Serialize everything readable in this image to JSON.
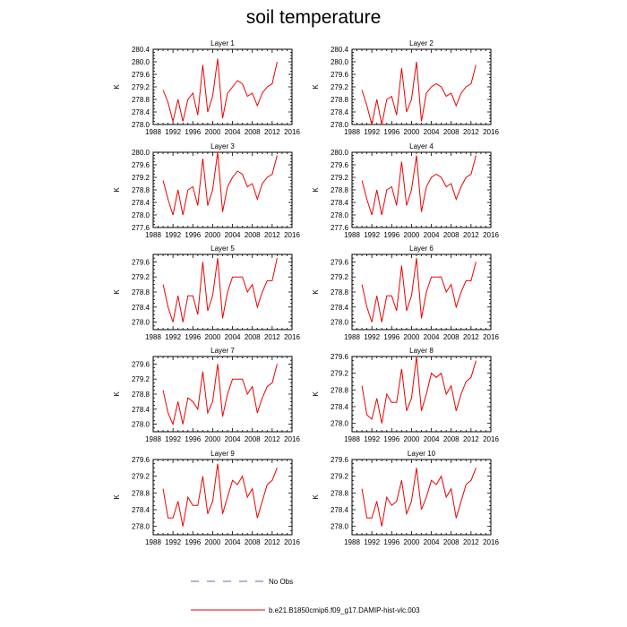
{
  "title": "soil temperature",
  "colors": {
    "series": "#ee0000",
    "noobs": "#6a6aa8",
    "axis": "#000000"
  },
  "legend": {
    "placement": "bottom",
    "items": [
      {
        "label": "No Obs",
        "style": "dashed",
        "color": "#6a6aa8"
      },
      {
        "label": "b.e21.B1850cmip6.f09_g17.DAMIP-hist-vlc.003",
        "style": "solid",
        "color": "#ee0000"
      }
    ]
  },
  "chart_data": [
    {
      "type": "line",
      "title": "Layer 1",
      "ylabel": "K",
      "xlim": [
        1988,
        2016
      ],
      "ylim": [
        278.0,
        280.4
      ],
      "xticks": [
        "1988",
        "1992",
        "1996",
        "2000",
        "2004",
        "2008",
        "2012",
        "2016"
      ],
      "yticks": [
        "278.0",
        "278.4",
        "278.8",
        "279.2",
        "279.6",
        "280.0",
        "280.4"
      ],
      "series": [
        {
          "x": [
            1990,
            1991,
            1992,
            1993,
            1994,
            1995,
            1996,
            1997,
            1998,
            1999,
            2000,
            2001,
            2002,
            2003,
            2004,
            2005,
            2006,
            2007,
            2008,
            2009,
            2010,
            2011,
            2012,
            2013
          ],
          "y": [
            279.1,
            278.7,
            278.1,
            278.8,
            278.1,
            278.8,
            279.0,
            278.3,
            279.9,
            278.4,
            278.9,
            280.1,
            278.2,
            279.0,
            279.2,
            279.4,
            279.3,
            278.9,
            279.0,
            278.6,
            279.0,
            279.2,
            279.3,
            280.0
          ]
        }
      ]
    },
    {
      "type": "line",
      "title": "Layer 2",
      "ylabel": "K",
      "xlim": [
        1988,
        2016
      ],
      "ylim": [
        278.0,
        280.4
      ],
      "xticks": [
        "1988",
        "1992",
        "1996",
        "2000",
        "2004",
        "2008",
        "2012",
        "2016"
      ],
      "yticks": [
        "278.0",
        "278.4",
        "278.8",
        "279.2",
        "279.6",
        "280.0",
        "280.4"
      ],
      "series": [
        {
          "x": [
            1990,
            1991,
            1992,
            1993,
            1994,
            1995,
            1996,
            1997,
            1998,
            1999,
            2000,
            2001,
            2002,
            2003,
            2004,
            2005,
            2006,
            2007,
            2008,
            2009,
            2010,
            2011,
            2012,
            2013
          ],
          "y": [
            279.1,
            278.6,
            278.0,
            278.8,
            278.0,
            278.8,
            278.9,
            278.3,
            279.8,
            278.4,
            278.8,
            280.0,
            278.1,
            279.0,
            279.2,
            279.3,
            279.2,
            278.9,
            279.0,
            278.6,
            279.0,
            279.2,
            279.3,
            279.9
          ]
        }
      ]
    },
    {
      "type": "line",
      "title": "Layer 3",
      "ylabel": "K",
      "xlim": [
        1988,
        2016
      ],
      "ylim": [
        277.6,
        280.0
      ],
      "xticks": [
        "1988",
        "1992",
        "1996",
        "2000",
        "2004",
        "2008",
        "2012",
        "2016"
      ],
      "yticks": [
        "277.6",
        "278.0",
        "278.4",
        "278.8",
        "279.2",
        "279.6",
        "280.0"
      ],
      "series": [
        {
          "x": [
            1990,
            1991,
            1992,
            1993,
            1994,
            1995,
            1996,
            1997,
            1998,
            1999,
            2000,
            2001,
            2002,
            2003,
            2004,
            2005,
            2006,
            2007,
            2008,
            2009,
            2010,
            2011,
            2012,
            2013
          ],
          "y": [
            279.1,
            278.5,
            278.0,
            278.8,
            278.0,
            278.8,
            278.9,
            278.3,
            279.8,
            278.3,
            278.8,
            280.0,
            278.1,
            278.9,
            279.2,
            279.4,
            279.3,
            278.9,
            279.0,
            278.5,
            279.0,
            279.2,
            279.3,
            279.9
          ]
        }
      ]
    },
    {
      "type": "line",
      "title": "Layer 4",
      "ylabel": "K",
      "xlim": [
        1988,
        2016
      ],
      "ylim": [
        277.6,
        280.0
      ],
      "xticks": [
        "1988",
        "1992",
        "1996",
        "2000",
        "2004",
        "2008",
        "2012",
        "2016"
      ],
      "yticks": [
        "277.6",
        "278.0",
        "278.4",
        "278.8",
        "279.2",
        "279.6",
        "280.0"
      ],
      "series": [
        {
          "x": [
            1990,
            1991,
            1992,
            1993,
            1994,
            1995,
            1996,
            1997,
            1998,
            1999,
            2000,
            2001,
            2002,
            2003,
            2004,
            2005,
            2006,
            2007,
            2008,
            2009,
            2010,
            2011,
            2012,
            2013
          ],
          "y": [
            279.1,
            278.5,
            278.0,
            278.8,
            278.0,
            278.8,
            278.9,
            278.3,
            279.7,
            278.3,
            278.8,
            279.9,
            278.1,
            278.9,
            279.2,
            279.3,
            279.2,
            278.9,
            279.0,
            278.5,
            278.9,
            279.2,
            279.3,
            279.9
          ]
        }
      ]
    },
    {
      "type": "line",
      "title": "Layer 5",
      "ylabel": "K",
      "xlim": [
        1988,
        2016
      ],
      "ylim": [
        277.8,
        279.8
      ],
      "xticks": [
        "1988",
        "1992",
        "1996",
        "2000",
        "2004",
        "2008",
        "2012",
        "2016"
      ],
      "yticks": [
        "278.0",
        "278.4",
        "278.8",
        "279.2",
        "279.6"
      ],
      "series": [
        {
          "x": [
            1990,
            1991,
            1992,
            1993,
            1994,
            1995,
            1996,
            1997,
            1998,
            1999,
            2000,
            2001,
            2002,
            2003,
            2004,
            2005,
            2006,
            2007,
            2008,
            2009,
            2010,
            2011,
            2012,
            2013
          ],
          "y": [
            279.0,
            278.4,
            278.0,
            278.7,
            278.0,
            278.7,
            278.7,
            278.2,
            279.6,
            278.3,
            278.7,
            279.7,
            278.1,
            278.8,
            279.2,
            279.2,
            279.2,
            278.8,
            279.0,
            278.4,
            278.8,
            279.1,
            279.1,
            279.7
          ]
        }
      ]
    },
    {
      "type": "line",
      "title": "Layer 6",
      "ylabel": "K",
      "xlim": [
        1988,
        2016
      ],
      "ylim": [
        277.8,
        279.8
      ],
      "xticks": [
        "1988",
        "1992",
        "1996",
        "2000",
        "2004",
        "2008",
        "2012",
        "2016"
      ],
      "yticks": [
        "278.0",
        "278.4",
        "278.8",
        "279.2",
        "279.6"
      ],
      "series": [
        {
          "x": [
            1990,
            1991,
            1992,
            1993,
            1994,
            1995,
            1996,
            1997,
            1998,
            1999,
            2000,
            2001,
            2002,
            2003,
            2004,
            2005,
            2006,
            2007,
            2008,
            2009,
            2010,
            2011,
            2012,
            2013
          ],
          "y": [
            279.0,
            278.4,
            278.0,
            278.7,
            278.0,
            278.7,
            278.7,
            278.3,
            279.5,
            278.3,
            278.7,
            279.7,
            278.1,
            278.8,
            279.2,
            279.2,
            279.2,
            278.8,
            279.0,
            278.4,
            278.8,
            279.1,
            279.1,
            279.6
          ]
        }
      ]
    },
    {
      "type": "line",
      "title": "Layer 7",
      "ylabel": "K",
      "xlim": [
        1988,
        2016
      ],
      "ylim": [
        277.8,
        279.8
      ],
      "xticks": [
        "1988",
        "1992",
        "1996",
        "2000",
        "2004",
        "2008",
        "2012",
        "2016"
      ],
      "yticks": [
        "278.0",
        "278.4",
        "278.8",
        "279.2",
        "279.6"
      ],
      "series": [
        {
          "x": [
            1990,
            1991,
            1992,
            1993,
            1994,
            1995,
            1996,
            1997,
            1998,
            1999,
            2000,
            2001,
            2002,
            2003,
            2004,
            2005,
            2006,
            2007,
            2008,
            2009,
            2010,
            2011,
            2012,
            2013
          ],
          "y": [
            278.9,
            278.3,
            278.0,
            278.6,
            278.0,
            278.7,
            278.6,
            278.4,
            279.4,
            278.3,
            278.6,
            279.6,
            278.2,
            278.8,
            279.2,
            279.2,
            279.2,
            278.8,
            279.0,
            278.3,
            278.7,
            279.0,
            279.1,
            279.6
          ]
        }
      ]
    },
    {
      "type": "line",
      "title": "Layer 8",
      "ylabel": "K",
      "xlim": [
        1988,
        2016
      ],
      "ylim": [
        277.8,
        279.6
      ],
      "xticks": [
        "1988",
        "1992",
        "1996",
        "2000",
        "2004",
        "2008",
        "2012",
        "2016"
      ],
      "yticks": [
        "278.0",
        "278.4",
        "278.8",
        "279.2",
        "279.6"
      ],
      "series": [
        {
          "x": [
            1990,
            1991,
            1992,
            1993,
            1994,
            1995,
            1996,
            1997,
            1998,
            1999,
            2000,
            2001,
            2002,
            2003,
            2004,
            2005,
            2006,
            2007,
            2008,
            2009,
            2010,
            2011,
            2012,
            2013
          ],
          "y": [
            278.9,
            278.2,
            278.1,
            278.6,
            278.0,
            278.7,
            278.5,
            278.5,
            279.3,
            278.3,
            278.6,
            279.6,
            278.3,
            278.7,
            279.2,
            279.1,
            279.2,
            278.7,
            278.9,
            278.3,
            278.7,
            279.0,
            279.1,
            279.5
          ]
        }
      ]
    },
    {
      "type": "line",
      "title": "Layer 9",
      "ylabel": "K",
      "xlim": [
        1988,
        2016
      ],
      "ylim": [
        277.8,
        279.6
      ],
      "xticks": [
        "1988",
        "1992",
        "1996",
        "2000",
        "2004",
        "2008",
        "2012",
        "2016"
      ],
      "yticks": [
        "278.0",
        "278.4",
        "278.8",
        "279.2",
        "279.6"
      ],
      "series": [
        {
          "x": [
            1990,
            1991,
            1992,
            1993,
            1994,
            1995,
            1996,
            1997,
            1998,
            1999,
            2000,
            2001,
            2002,
            2003,
            2004,
            2005,
            2006,
            2007,
            2008,
            2009,
            2010,
            2011,
            2012,
            2013
          ],
          "y": [
            278.9,
            278.2,
            278.2,
            278.6,
            278.0,
            278.7,
            278.5,
            278.5,
            279.2,
            278.3,
            278.6,
            279.5,
            278.3,
            278.7,
            279.1,
            279.0,
            279.2,
            278.7,
            278.9,
            278.2,
            278.6,
            279.0,
            279.1,
            279.4
          ]
        }
      ]
    },
    {
      "type": "line",
      "title": "Layer 10",
      "ylabel": "K",
      "xlim": [
        1988,
        2016
      ],
      "ylim": [
        277.8,
        279.6
      ],
      "xticks": [
        "1988",
        "1992",
        "1996",
        "2000",
        "2004",
        "2008",
        "2012",
        "2016"
      ],
      "yticks": [
        "278.0",
        "278.4",
        "278.8",
        "279.2",
        "279.6"
      ],
      "series": [
        {
          "x": [
            1990,
            1991,
            1992,
            1993,
            1994,
            1995,
            1996,
            1997,
            1998,
            1999,
            2000,
            2001,
            2002,
            2003,
            2004,
            2005,
            2006,
            2007,
            2008,
            2009,
            2010,
            2011,
            2012,
            2013
          ],
          "y": [
            278.9,
            278.2,
            278.2,
            278.6,
            278.0,
            278.7,
            278.5,
            278.6,
            279.1,
            278.3,
            278.6,
            279.4,
            278.4,
            278.7,
            279.1,
            279.0,
            279.2,
            278.7,
            278.9,
            278.2,
            278.6,
            279.0,
            279.1,
            279.4
          ]
        }
      ]
    }
  ]
}
